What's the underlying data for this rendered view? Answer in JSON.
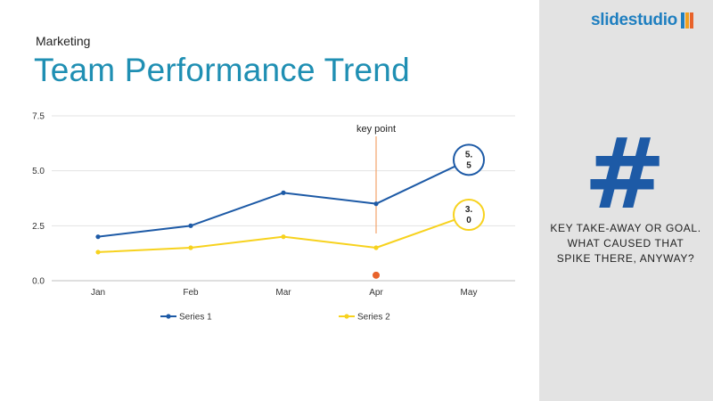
{
  "slide": {
    "category": "Marketing",
    "title": "Team Performance Trend"
  },
  "side": {
    "brand": "slidestudio",
    "hash_glyph": "#",
    "takeaway": "KEY TAKE-AWAY OR GOAL. WHAT CAUSED THAT SPIKE THERE, ANYWAY?",
    "colors": {
      "panel": "#e3e3e3",
      "hash": "#1d5aa6",
      "brand": "#1f7fc0"
    }
  },
  "chart_data": {
    "type": "line",
    "categories": [
      "Jan",
      "Feb",
      "Mar",
      "Apr",
      "May"
    ],
    "series": [
      {
        "name": "Series 1",
        "values": [
          2.0,
          2.5,
          4.0,
          3.5,
          5.5
        ],
        "color": "#1d5aa6"
      },
      {
        "name": "Series 2",
        "values": [
          1.3,
          1.5,
          2.0,
          1.5,
          3.0
        ],
        "color": "#f7d21e"
      }
    ],
    "ylim": [
      0,
      7.5
    ],
    "yticks": [
      "0.0",
      "2.5",
      "5.0",
      "7.5"
    ],
    "grid": true,
    "legend": "bottom",
    "callouts": [
      {
        "series": 0,
        "index": 4,
        "text": [
          "5.",
          "5"
        ]
      },
      {
        "series": 1,
        "index": 4,
        "text": [
          "3.",
          "0"
        ]
      }
    ],
    "annotation": {
      "text": "key point",
      "category": "Apr",
      "marker_value": 0.25,
      "marker_color": "#e8632b",
      "line_color": "#f4a46b"
    }
  }
}
